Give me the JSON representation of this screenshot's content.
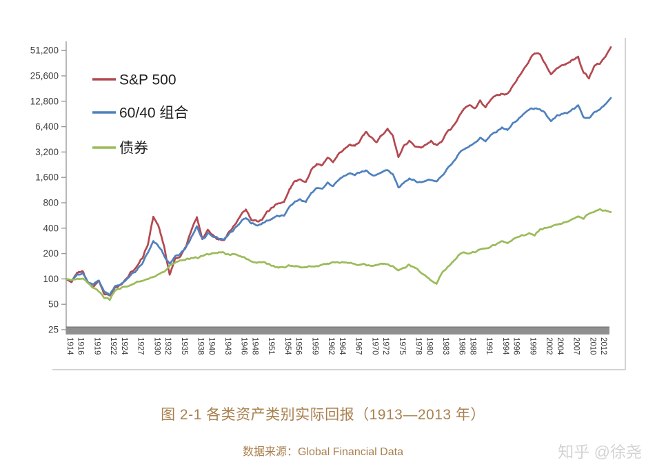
{
  "caption": {
    "title": "图 2-1 各类资产类别实际回报（1913—2013 年）",
    "source": "数据来源：Global Financial Data"
  },
  "watermark": {
    "text": "知乎 @徐尧"
  },
  "colors": {
    "sp500": "#b34950",
    "mix6040": "#4f81bd",
    "bonds": "#9cbb5a",
    "axis_line": "#9a9a9a",
    "axis_bar": "#8f8f8f",
    "axis_bar_edge": "#6f6f6f",
    "tick_text": "#3d3d3d",
    "legend_text": "#1f1f1f",
    "frame_border": "#c6c6c6",
    "caption_text": "#a9804e",
    "watermark_text": "#d3d3d3"
  },
  "chart_data": {
    "type": "line",
    "title": "图 2-1 各类资产类别实际回报（1913—2013 年）",
    "source": "数据来源：Global Financial Data",
    "y_scale": "log2",
    "ylim": [
      25,
      51200
    ],
    "grid": false,
    "legend_position": "upper-left",
    "y_ticks": [
      51200,
      25600,
      12800,
      6400,
      3200,
      1600,
      800,
      400,
      200,
      100,
      50,
      25
    ],
    "y_tick_labels": [
      "51,200",
      "25,600",
      "12,800",
      "6,400",
      "3,200",
      "1,600",
      "800",
      "400",
      "200",
      "100",
      "50",
      "25"
    ],
    "x_tick_labels": [
      "1914",
      "1916",
      "1919",
      "1922",
      "1924",
      "1927",
      "1930",
      "1932",
      "1935",
      "1938",
      "1940",
      "1943",
      "1946",
      "1948",
      "1951",
      "1954",
      "1956",
      "1959",
      "1962",
      "1964",
      "1967",
      "1970",
      "1972",
      "1975",
      "1978",
      "1980",
      "1983",
      "1986",
      "1988",
      "1991",
      "1994",
      "1996",
      "1999",
      "2002",
      "2004",
      "2007",
      "2010",
      "2012"
    ],
    "x_start_year": 1913,
    "x_end_year": 2013,
    "legend": [
      {
        "label": "S&P 500",
        "color": "#b34950"
      },
      {
        "label": "60/40 组合",
        "color": "#4f81bd"
      },
      {
        "label": "债券",
        "color": "#9cbb5a"
      }
    ],
    "series": [
      {
        "name": "S&P 500",
        "color": "#b34950",
        "jitter": 0.06,
        "values": [
          100,
          90,
          118,
          125,
          90,
          82,
          96,
          66,
          64,
          80,
          84,
          98,
          122,
          138,
          178,
          255,
          545,
          420,
          240,
          112,
          175,
          185,
          240,
          390,
          540,
          300,
          385,
          330,
          295,
          288,
          370,
          440,
          555,
          670,
          495,
          480,
          515,
          635,
          720,
          800,
          810,
          1150,
          1450,
          1550,
          1400,
          1950,
          2250,
          2250,
          2750,
          2450,
          3000,
          3500,
          3900,
          3700,
          4500,
          5500,
          4700,
          4300,
          5100,
          6000,
          4900,
          2700,
          3700,
          4350,
          3800,
          3650,
          3850,
          4300,
          3800,
          4400,
          5600,
          6300,
          8200,
          10300,
          11500,
          10600,
          12800,
          10800,
          13800,
          14800,
          15800,
          15300,
          19500,
          24000,
          31000,
          39000,
          48000,
          46000,
          35000,
          26500,
          31000,
          34000,
          35500,
          39500,
          43000,
          28000,
          24000,
          34000,
          36000,
          44000,
          56000
        ]
      },
      {
        "name": "60/40 组合",
        "color": "#4f81bd",
        "jitter": 0.05,
        "values": [
          100,
          95,
          112,
          117,
          92,
          86,
          97,
          70,
          66,
          82,
          86,
          98,
          115,
          128,
          155,
          205,
          285,
          245,
          190,
          150,
          185,
          200,
          235,
          310,
          420,
          295,
          345,
          320,
          300,
          290,
          345,
          395,
          470,
          530,
          450,
          435,
          455,
          495,
          525,
          560,
          570,
          700,
          830,
          870,
          820,
          1050,
          1180,
          1180,
          1380,
          1270,
          1480,
          1650,
          1800,
          1730,
          1850,
          1900,
          1750,
          1700,
          1850,
          1950,
          1750,
          1200,
          1400,
          1550,
          1450,
          1420,
          1450,
          1500,
          1430,
          1650,
          2050,
          2400,
          3000,
          3500,
          3700,
          4100,
          4700,
          4300,
          5200,
          5600,
          6200,
          5900,
          7000,
          7800,
          9100,
          10100,
          10700,
          10400,
          9000,
          7500,
          8500,
          9100,
          9300,
          10200,
          11300,
          8400,
          8000,
          9700,
          10200,
          11700,
          14000
        ]
      },
      {
        "name": "债券",
        "color": "#9cbb5a",
        "jitter": 0.045,
        "values": [
          100,
          98,
          99,
          101,
          88,
          78,
          72,
          60,
          57,
          73,
          77,
          82,
          86,
          91,
          96,
          100,
          104,
          113,
          122,
          142,
          157,
          165,
          172,
          177,
          179,
          187,
          194,
          200,
          207,
          201,
          196,
          193,
          189,
          174,
          162,
          157,
          161,
          151,
          142,
          136,
          139,
          144,
          141,
          137,
          139,
          141,
          142,
          149,
          151,
          154,
          155,
          156,
          155,
          150,
          146,
          149,
          143,
          147,
          152,
          151,
          139,
          127,
          134,
          147,
          138,
          122,
          108,
          96,
          88,
          118,
          138,
          160,
          190,
          208,
          200,
          207,
          224,
          230,
          244,
          258,
          282,
          262,
          298,
          318,
          328,
          342,
          330,
          385,
          400,
          418,
          440,
          458,
          478,
          510,
          548,
          515,
          590,
          638,
          668,
          645,
          620
        ]
      }
    ]
  }
}
